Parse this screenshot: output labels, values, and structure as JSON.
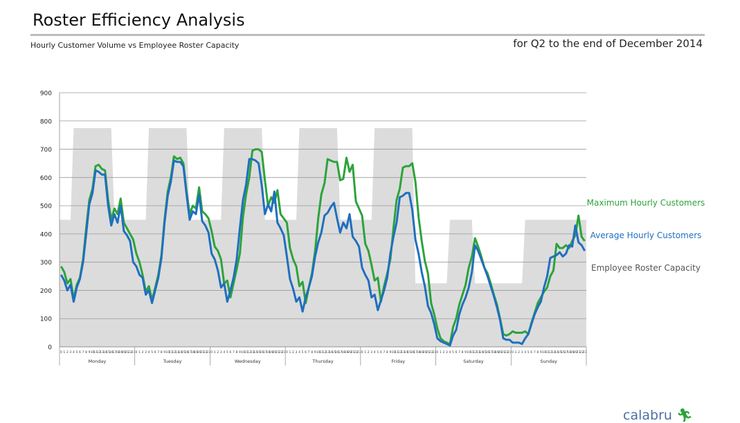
{
  "header": {
    "title": "Roster Efficiency Analysis",
    "subtitle": "Hourly Customer Volume vs Employee Roster Capacity",
    "period": "for Q2 to the end of December 2014"
  },
  "logo": {
    "text": "calabru",
    "icon": "running-figure-icon"
  },
  "colors": {
    "max": "#2ca33a",
    "avg": "#1f6fbf",
    "capacity": "#dcdcdc",
    "capacity_label": "#555555",
    "grid": "#9a9a9a"
  },
  "chart_data": {
    "type": "line",
    "title": "",
    "xlabel": "",
    "ylabel": "",
    "ylim": [
      0,
      900
    ],
    "yticks": [
      0,
      100,
      200,
      300,
      400,
      500,
      600,
      700,
      800,
      900
    ],
    "grid": true,
    "legend_placement": "right",
    "days": [
      "Monday",
      "Tuesday",
      "Wednesday",
      "Thursday",
      "Friday",
      "Saturday",
      "Sunday"
    ],
    "hour_labels": [
      "0",
      "1",
      "2",
      "3",
      "4",
      "5",
      "6",
      "7",
      "8",
      "9",
      "10",
      "11",
      "12",
      "13",
      "14",
      "15",
      "16",
      "17",
      "18",
      "19",
      "20",
      "21",
      "22",
      "23"
    ],
    "series": [
      {
        "name": "Maximum Hourly Customers",
        "type": "line",
        "values": [
          285,
          265,
          225,
          240,
          170,
          220,
          245,
          310,
          420,
          520,
          560,
          640,
          645,
          630,
          625,
          520,
          450,
          490,
          470,
          525,
          440,
          420,
          400,
          380,
          330,
          300,
          255,
          195,
          215,
          165,
          210,
          255,
          325,
          450,
          550,
          600,
          675,
          665,
          670,
          650,
          550,
          470,
          500,
          490,
          565,
          480,
          470,
          455,
          410,
          355,
          340,
          310,
          225,
          235,
          175,
          225,
          275,
          330,
          460,
          540,
          600,
          695,
          700,
          700,
          690,
          590,
          500,
          530,
          510,
          555,
          470,
          455,
          440,
          350,
          310,
          285,
          215,
          230,
          155,
          210,
          260,
          340,
          455,
          540,
          580,
          665,
          660,
          655,
          655,
          590,
          595,
          670,
          620,
          645,
          515,
          490,
          465,
          365,
          340,
          290,
          235,
          245,
          160,
          215,
          260,
          310,
          420,
          520,
          560,
          635,
          640,
          640,
          650,
          585,
          460,
          375,
          305,
          260,
          155,
          115,
          65,
          30,
          20,
          15,
          10,
          70,
          100,
          150,
          185,
          220,
          280,
          320,
          385,
          355,
          320,
          280,
          260,
          225,
          185,
          150,
          100,
          45,
          40,
          45,
          55,
          50,
          50,
          50,
          55,
          45,
          85,
          120,
          155,
          175,
          195,
          210,
          250,
          270,
          365,
          350,
          350,
          360,
          350,
          375,
          395,
          465,
          390,
          375
        ]
      },
      {
        "name": "Average Hourly Customers",
        "type": "line",
        "values": [
          255,
          235,
          200,
          220,
          160,
          210,
          240,
          300,
          400,
          505,
          545,
          625,
          620,
          610,
          610,
          500,
          430,
          470,
          440,
          500,
          410,
          395,
          375,
          300,
          285,
          255,
          245,
          185,
          200,
          155,
          200,
          245,
          315,
          440,
          535,
          585,
          660,
          655,
          655,
          640,
          540,
          450,
          480,
          470,
          540,
          445,
          430,
          405,
          330,
          310,
          270,
          210,
          225,
          160,
          200,
          245,
          310,
          420,
          520,
          575,
          665,
          665,
          660,
          650,
          570,
          470,
          505,
          480,
          550,
          440,
          420,
          395,
          320,
          240,
          205,
          160,
          175,
          125,
          175,
          210,
          250,
          320,
          370,
          405,
          465,
          475,
          495,
          510,
          455,
          405,
          440,
          420,
          470,
          390,
          375,
          355,
          280,
          255,
          235,
          175,
          185,
          130,
          165,
          200,
          245,
          330,
          390,
          440,
          530,
          535,
          545,
          545,
          485,
          380,
          330,
          265,
          215,
          145,
          120,
          80,
          30,
          20,
          15,
          10,
          5,
          40,
          60,
          115,
          150,
          175,
          210,
          265,
          360,
          340,
          310,
          280,
          250,
          215,
          180,
          140,
          95,
          30,
          25,
          25,
          15,
          15,
          15,
          10,
          30,
          45,
          80,
          115,
          140,
          160,
          210,
          250,
          315,
          320,
          325,
          335,
          320,
          330,
          360,
          355,
          430,
          370,
          360,
          340
        ]
      },
      {
        "name": "Employee Roster Capacity",
        "type": "area",
        "values": [
          450,
          450,
          450,
          450,
          775,
          775,
          775,
          775,
          775,
          775,
          775,
          775,
          775,
          775,
          775,
          775,
          775,
          450,
          450,
          450,
          450,
          450,
          450,
          450,
          450,
          450,
          450,
          450,
          775,
          775,
          775,
          775,
          775,
          775,
          775,
          775,
          775,
          775,
          775,
          775,
          775,
          450,
          450,
          450,
          450,
          450,
          450,
          450,
          450,
          450,
          450,
          450,
          775,
          775,
          775,
          775,
          775,
          775,
          775,
          775,
          775,
          775,
          775,
          775,
          775,
          450,
          450,
          450,
          450,
          450,
          450,
          450,
          450,
          450,
          450,
          450,
          775,
          775,
          775,
          775,
          775,
          775,
          775,
          775,
          775,
          775,
          775,
          775,
          775,
          450,
          450,
          450,
          450,
          450,
          450,
          450,
          450,
          450,
          450,
          450,
          775,
          775,
          775,
          775,
          775,
          775,
          775,
          775,
          775,
          775,
          775,
          775,
          775,
          225,
          225,
          225,
          225,
          225,
          225,
          225,
          225,
          225,
          225,
          225,
          450,
          450,
          450,
          450,
          450,
          450,
          450,
          450,
          225,
          225,
          225,
          225,
          225,
          225,
          225,
          225,
          225,
          225,
          225,
          225,
          225,
          225,
          225,
          225,
          450,
          450,
          450,
          450,
          450,
          450,
          450,
          450,
          450,
          450,
          450,
          450,
          450,
          450,
          450,
          450,
          450,
          450,
          450,
          450
        ]
      }
    ]
  }
}
